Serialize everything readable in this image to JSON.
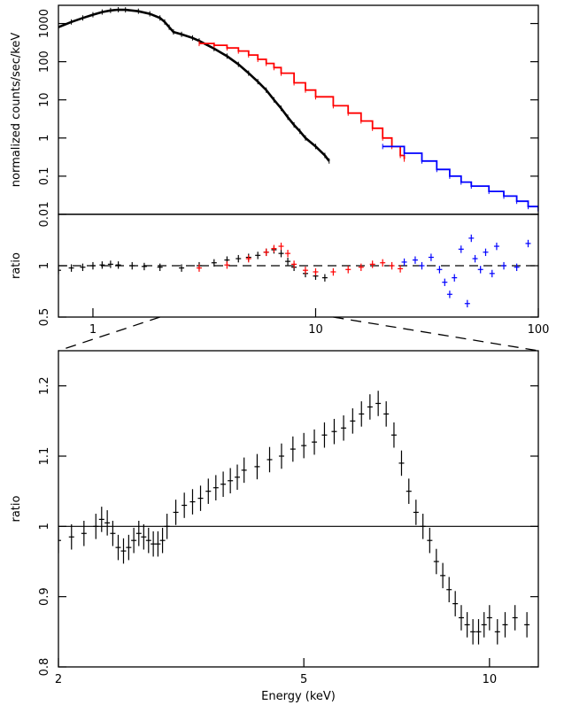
{
  "chart_data": [
    {
      "panel": "spectrum",
      "type": "line",
      "xscale": "log",
      "yscale": "log",
      "xlim": [
        0.7,
        100
      ],
      "ylim": [
        0.01,
        3000
      ],
      "xlabel": "",
      "ylabel": "normalized counts/sec/keV",
      "ytick_labels": [
        "0.01",
        "0.1",
        "1",
        "10",
        "100",
        "1000"
      ],
      "ytick_values": [
        0.01,
        0.1,
        1,
        10,
        100,
        1000
      ],
      "series": [
        {
          "color": "#000000",
          "style": "dense points with error bars",
          "points": [
            [
              0.7,
              800
            ],
            [
              0.8,
              1100
            ],
            [
              0.9,
              1400
            ],
            [
              1.0,
              1700
            ],
            [
              1.1,
              2000
            ],
            [
              1.2,
              2200
            ],
            [
              1.3,
              2300
            ],
            [
              1.4,
              2280
            ],
            [
              1.6,
              2100
            ],
            [
              1.8,
              1800
            ],
            [
              2.0,
              1400
            ],
            [
              2.1,
              1100
            ],
            [
              2.2,
              800
            ],
            [
              2.3,
              600
            ],
            [
              2.5,
              520
            ],
            [
              2.8,
              420
            ],
            [
              3.0,
              350
            ],
            [
              3.5,
              220
            ],
            [
              4.0,
              140
            ],
            [
              4.5,
              85
            ],
            [
              5.0,
              50
            ],
            [
              5.5,
              30
            ],
            [
              6.0,
              18
            ],
            [
              6.5,
              10
            ],
            [
              7.0,
              6
            ],
            [
              7.5,
              3.5
            ],
            [
              8.0,
              2.2
            ],
            [
              8.5,
              1.5
            ],
            [
              9.0,
              1.0
            ],
            [
              10.0,
              0.6
            ],
            [
              11.0,
              0.35
            ],
            [
              11.5,
              0.25
            ]
          ]
        },
        {
          "color": "#ff0000",
          "style": "step with error bars",
          "points": [
            [
              3.0,
              300
            ],
            [
              3.5,
              270
            ],
            [
              4.0,
              230
            ],
            [
              4.5,
              190
            ],
            [
              5.0,
              150
            ],
            [
              5.5,
              115
            ],
            [
              6.0,
              90
            ],
            [
              6.5,
              70
            ],
            [
              7.0,
              50
            ],
            [
              8.0,
              28
            ],
            [
              9.0,
              18
            ],
            [
              10.0,
              12
            ],
            [
              12.0,
              7
            ],
            [
              14.0,
              4.5
            ],
            [
              16.0,
              2.8
            ],
            [
              18.0,
              1.8
            ],
            [
              20.0,
              1.0
            ],
            [
              22.0,
              0.6
            ],
            [
              24.0,
              0.35
            ],
            [
              25.0,
              0.28
            ]
          ]
        },
        {
          "color": "#0000ff",
          "style": "step with error bars",
          "points": [
            [
              20.0,
              0.6
            ],
            [
              25.0,
              0.4
            ],
            [
              30.0,
              0.25
            ],
            [
              35.0,
              0.15
            ],
            [
              40.0,
              0.1
            ],
            [
              45.0,
              0.07
            ],
            [
              50.0,
              0.055
            ],
            [
              60.0,
              0.04
            ],
            [
              70.0,
              0.03
            ],
            [
              80.0,
              0.022
            ],
            [
              90.0,
              0.016
            ],
            [
              100.0,
              0.012
            ]
          ]
        }
      ]
    },
    {
      "panel": "ratio",
      "type": "scatter",
      "xscale": "log",
      "yscale": "log",
      "xlim": [
        0.7,
        100
      ],
      "ylim": [
        0.5,
        2
      ],
      "xlabel": "",
      "ylabel": "ratio",
      "xtick_labels": [
        "1",
        "10",
        "100"
      ],
      "xtick_values": [
        1,
        10,
        100
      ],
      "ytick_labels": [
        "0.5",
        "1"
      ],
      "ytick_values": [
        0.5,
        1
      ],
      "reference_line": 1,
      "series": [
        {
          "color": "#000000",
          "points": [
            [
              0.7,
              0.94
            ],
            [
              0.8,
              0.97
            ],
            [
              0.9,
              0.98
            ],
            [
              1.0,
              1.0
            ],
            [
              1.1,
              1.01
            ],
            [
              1.2,
              1.02
            ],
            [
              1.3,
              1.01
            ],
            [
              1.5,
              1.0
            ],
            [
              1.7,
              0.99
            ],
            [
              2.0,
              0.98
            ],
            [
              2.5,
              0.97
            ],
            [
              3.0,
              1.0
            ],
            [
              3.5,
              1.04
            ],
            [
              4.0,
              1.08
            ],
            [
              4.5,
              1.1
            ],
            [
              5.0,
              1.12
            ],
            [
              5.5,
              1.15
            ],
            [
              6.0,
              1.2
            ],
            [
              6.5,
              1.24
            ],
            [
              7.0,
              1.18
            ],
            [
              7.5,
              1.06
            ],
            [
              8.0,
              0.98
            ],
            [
              9.0,
              0.9
            ],
            [
              10.0,
              0.87
            ],
            [
              11.0,
              0.85
            ]
          ]
        },
        {
          "color": "#ff0000",
          "points": [
            [
              3.0,
              0.97
            ],
            [
              4.0,
              1.01
            ],
            [
              5.0,
              1.1
            ],
            [
              6.0,
              1.2
            ],
            [
              6.5,
              1.26
            ],
            [
              7.0,
              1.3
            ],
            [
              7.5,
              1.18
            ],
            [
              8.0,
              1.02
            ],
            [
              9.0,
              0.94
            ],
            [
              10.0,
              0.92
            ],
            [
              12.0,
              0.92
            ],
            [
              14.0,
              0.95
            ],
            [
              16.0,
              0.98
            ],
            [
              18.0,
              1.02
            ],
            [
              20.0,
              1.04
            ],
            [
              22.0,
              1.0
            ],
            [
              24.0,
              0.96
            ]
          ]
        },
        {
          "color": "#0000ff",
          "points": [
            [
              25.0,
              1.05
            ],
            [
              28.0,
              1.08
            ],
            [
              30.0,
              1.0
            ],
            [
              33.0,
              1.12
            ],
            [
              36.0,
              0.95
            ],
            [
              38.0,
              0.8
            ],
            [
              40.0,
              0.68
            ],
            [
              42.0,
              0.85
            ],
            [
              45.0,
              1.25
            ],
            [
              48.0,
              0.6
            ],
            [
              50.0,
              1.45
            ],
            [
              52.0,
              1.1
            ],
            [
              55.0,
              0.95
            ],
            [
              58.0,
              1.2
            ],
            [
              62.0,
              0.9
            ],
            [
              65.0,
              1.3
            ],
            [
              70.0,
              1.0
            ],
            [
              80.0,
              0.98
            ],
            [
              90.0,
              1.35
            ]
          ]
        }
      ]
    },
    {
      "panel": "zoom",
      "type": "scatter",
      "xscale": "log",
      "yscale": "linear",
      "xlim": [
        2,
        12
      ],
      "ylim": [
        0.8,
        1.25
      ],
      "xlabel": "Energy (keV)",
      "ylabel": "ratio",
      "xtick_labels": [
        "2",
        "5",
        "10"
      ],
      "xtick_values": [
        2,
        5,
        10
      ],
      "ytick_labels": [
        "0.8",
        "0.9",
        "1",
        "1.1",
        "1.2"
      ],
      "ytick_values": [
        0.8,
        0.9,
        1.0,
        1.1,
        1.2
      ],
      "reference_line": 1,
      "series": [
        {
          "color": "#000000",
          "points": [
            [
              2.0,
              0.98
            ],
            [
              2.1,
              0.985
            ],
            [
              2.2,
              0.99
            ],
            [
              2.3,
              1.0
            ],
            [
              2.35,
              1.01
            ],
            [
              2.4,
              1.005
            ],
            [
              2.45,
              0.99
            ],
            [
              2.5,
              0.97
            ],
            [
              2.55,
              0.965
            ],
            [
              2.6,
              0.97
            ],
            [
              2.65,
              0.98
            ],
            [
              2.7,
              0.99
            ],
            [
              2.75,
              0.985
            ],
            [
              2.8,
              0.98
            ],
            [
              2.85,
              0.975
            ],
            [
              2.9,
              0.975
            ],
            [
              2.95,
              0.98
            ],
            [
              3.0,
              1.0
            ],
            [
              3.1,
              1.02
            ],
            [
              3.2,
              1.03
            ],
            [
              3.3,
              1.035
            ],
            [
              3.4,
              1.04
            ],
            [
              3.5,
              1.05
            ],
            [
              3.6,
              1.055
            ],
            [
              3.7,
              1.06
            ],
            [
              3.8,
              1.065
            ],
            [
              3.9,
              1.07
            ],
            [
              4.0,
              1.08
            ],
            [
              4.2,
              1.085
            ],
            [
              4.4,
              1.095
            ],
            [
              4.6,
              1.1
            ],
            [
              4.8,
              1.11
            ],
            [
              5.0,
              1.115
            ],
            [
              5.2,
              1.12
            ],
            [
              5.4,
              1.13
            ],
            [
              5.6,
              1.135
            ],
            [
              5.8,
              1.14
            ],
            [
              6.0,
              1.15
            ],
            [
              6.2,
              1.16
            ],
            [
              6.4,
              1.17
            ],
            [
              6.6,
              1.175
            ],
            [
              6.8,
              1.16
            ],
            [
              7.0,
              1.13
            ],
            [
              7.2,
              1.09
            ],
            [
              7.4,
              1.05
            ],
            [
              7.6,
              1.02
            ],
            [
              7.8,
              1.0
            ],
            [
              8.0,
              0.98
            ],
            [
              8.2,
              0.95
            ],
            [
              8.4,
              0.93
            ],
            [
              8.6,
              0.91
            ],
            [
              8.8,
              0.89
            ],
            [
              9.0,
              0.87
            ],
            [
              9.2,
              0.86
            ],
            [
              9.4,
              0.85
            ],
            [
              9.6,
              0.85
            ],
            [
              9.8,
              0.86
            ],
            [
              10.0,
              0.87
            ],
            [
              10.3,
              0.85
            ],
            [
              10.6,
              0.86
            ],
            [
              11.0,
              0.87
            ],
            [
              11.5,
              0.86
            ]
          ]
        }
      ]
    }
  ]
}
